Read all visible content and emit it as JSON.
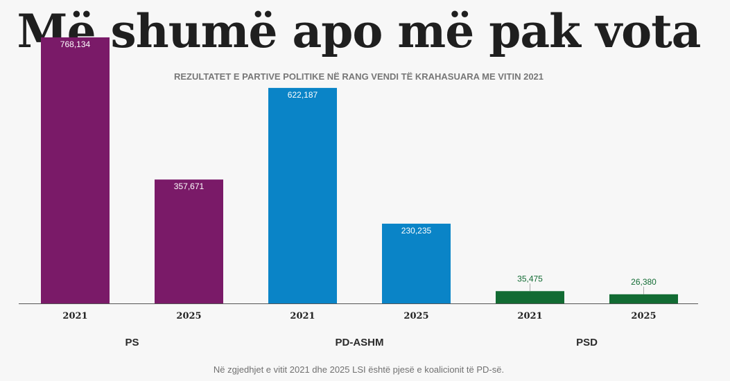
{
  "chart_data": {
    "type": "bar",
    "title": "Më shumë apo më pak vota",
    "subtitle": "REZULTATET E PARTIVE POLITIKE NË RANG VENDI TË KRAHASUARA ME VITIN 2021",
    "footnote": "Në zgjedhjet e vitit 2021 dhe 2025 LSI është pjesë e koalicionit të PD-së.",
    "ylim": [
      0,
      800000
    ],
    "grid": false,
    "legend": "none",
    "groups": [
      {
        "name": "PS",
        "color": "#7a1a68",
        "bars": [
          {
            "year": "2021",
            "value": 768134,
            "label": "768,134"
          },
          {
            "year": "2025",
            "value": 357671,
            "label": "357,671"
          }
        ]
      },
      {
        "name": "PD-ASHM",
        "color": "#0a84c7",
        "bars": [
          {
            "year": "2021",
            "value": 622187,
            "label": "622,187"
          },
          {
            "year": "2025",
            "value": 230235,
            "label": "230,235"
          }
        ]
      },
      {
        "name": "PSD",
        "color": "#126b33",
        "bars": [
          {
            "year": "2021",
            "value": 35475,
            "label": "35,475"
          },
          {
            "year": "2025",
            "value": 26380,
            "label": "26,380"
          }
        ]
      }
    ]
  }
}
